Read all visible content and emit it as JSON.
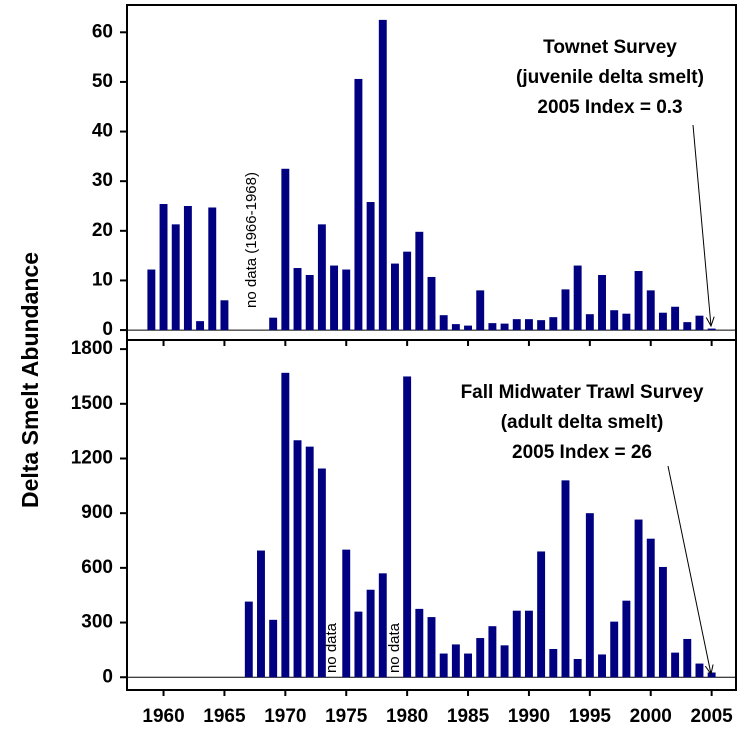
{
  "y_label": "Delta Smelt Abundance",
  "chart_data": [
    {
      "type": "bar",
      "title": "Townet Survey",
      "subtitle": "(juvenile delta smelt)",
      "annotation": "2005 Index = 0.3",
      "notes": [
        "no data (1966-1968)"
      ],
      "color": "#000080",
      "x": [
        1959,
        1960,
        1961,
        1962,
        1963,
        1964,
        1965,
        1966,
        1967,
        1968,
        1969,
        1970,
        1971,
        1972,
        1973,
        1974,
        1975,
        1976,
        1977,
        1978,
        1979,
        1980,
        1981,
        1982,
        1983,
        1984,
        1985,
        1986,
        1987,
        1988,
        1989,
        1990,
        1991,
        1992,
        1993,
        1994,
        1995,
        1996,
        1997,
        1998,
        1999,
        2000,
        2001,
        2002,
        2003,
        2004,
        2005
      ],
      "values": [
        12.2,
        25.4,
        21.3,
        25.0,
        1.8,
        24.7,
        6.0,
        null,
        null,
        null,
        2.5,
        32.5,
        12.5,
        11.1,
        21.3,
        13.0,
        12.2,
        50.6,
        25.8,
        62.5,
        13.4,
        15.8,
        19.8,
        10.7,
        3.0,
        1.2,
        0.9,
        8.0,
        1.4,
        1.3,
        2.2,
        2.2,
        2.0,
        2.6,
        8.2,
        13.0,
        3.2,
        11.1,
        4.0,
        3.3,
        11.9,
        8.0,
        3.5,
        4.7,
        1.6,
        2.9,
        0.3
      ],
      "xlim": [
        1957,
        2007
      ],
      "ylim": [
        -2,
        65.5
      ],
      "yticks": [
        0,
        10,
        20,
        30,
        40,
        50,
        60
      ]
    },
    {
      "type": "bar",
      "title": "Fall Midwater Trawl Survey",
      "subtitle": "(adult delta smelt)",
      "annotation": "2005 Index = 26",
      "notes": [
        "no data",
        "no data"
      ],
      "color": "#000080",
      "x": [
        1967,
        1968,
        1969,
        1970,
        1971,
        1972,
        1973,
        1974,
        1975,
        1976,
        1977,
        1978,
        1979,
        1980,
        1981,
        1982,
        1983,
        1984,
        1985,
        1986,
        1987,
        1988,
        1989,
        1990,
        1991,
        1992,
        1993,
        1994,
        1995,
        1996,
        1997,
        1998,
        1999,
        2000,
        2001,
        2002,
        2003,
        2004,
        2005
      ],
      "values": [
        415,
        695,
        315,
        1670,
        1300,
        1265,
        1145,
        null,
        700,
        360,
        480,
        570,
        null,
        1650,
        375,
        330,
        130,
        180,
        130,
        215,
        280,
        175,
        365,
        365,
        690,
        155,
        1080,
        100,
        900,
        125,
        305,
        420,
        865,
        760,
        605,
        135,
        210,
        75,
        26
      ],
      "xlim": [
        1957,
        2007
      ],
      "ylim": [
        -70,
        1850
      ],
      "yticks": [
        0,
        300,
        600,
        900,
        1200,
        1500,
        1800
      ],
      "xticks": [
        1960,
        1965,
        1970,
        1975,
        1980,
        1985,
        1990,
        1995,
        2000,
        2005
      ]
    }
  ]
}
